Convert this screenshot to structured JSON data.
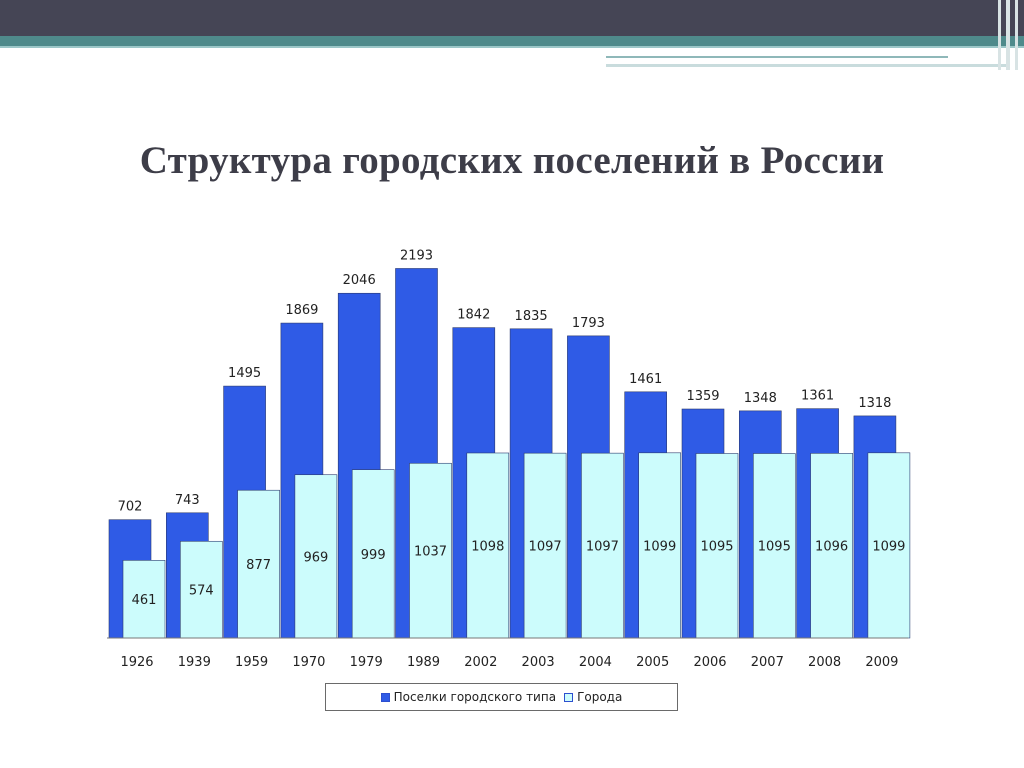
{
  "slide": {
    "title": "Структура городских поселений в России"
  },
  "colors": {
    "settlements": "#2f5be6",
    "cities": "#ccfcfc",
    "bar_border": "#2b3a6e"
  },
  "chart_data": {
    "type": "bar",
    "categories": [
      "1926",
      "1939",
      "1959",
      "1970",
      "1979",
      "1989",
      "2002",
      "2003",
      "2004",
      "2005",
      "2006",
      "2007",
      "2008",
      "2009"
    ],
    "series": [
      {
        "name": "Поселки городского типа",
        "values": [
          702,
          743,
          1495,
          1869,
          2046,
          2193,
          1842,
          1835,
          1793,
          1461,
          1359,
          1348,
          1361,
          1318
        ]
      },
      {
        "name": "Города",
        "values": [
          461,
          574,
          877,
          969,
          999,
          1037,
          1098,
          1097,
          1097,
          1099,
          1095,
          1095,
          1096,
          1099
        ]
      }
    ],
    "ylim": [
      0,
      2193
    ],
    "data_labels": true,
    "grid": false,
    "legend_position": "bottom"
  }
}
